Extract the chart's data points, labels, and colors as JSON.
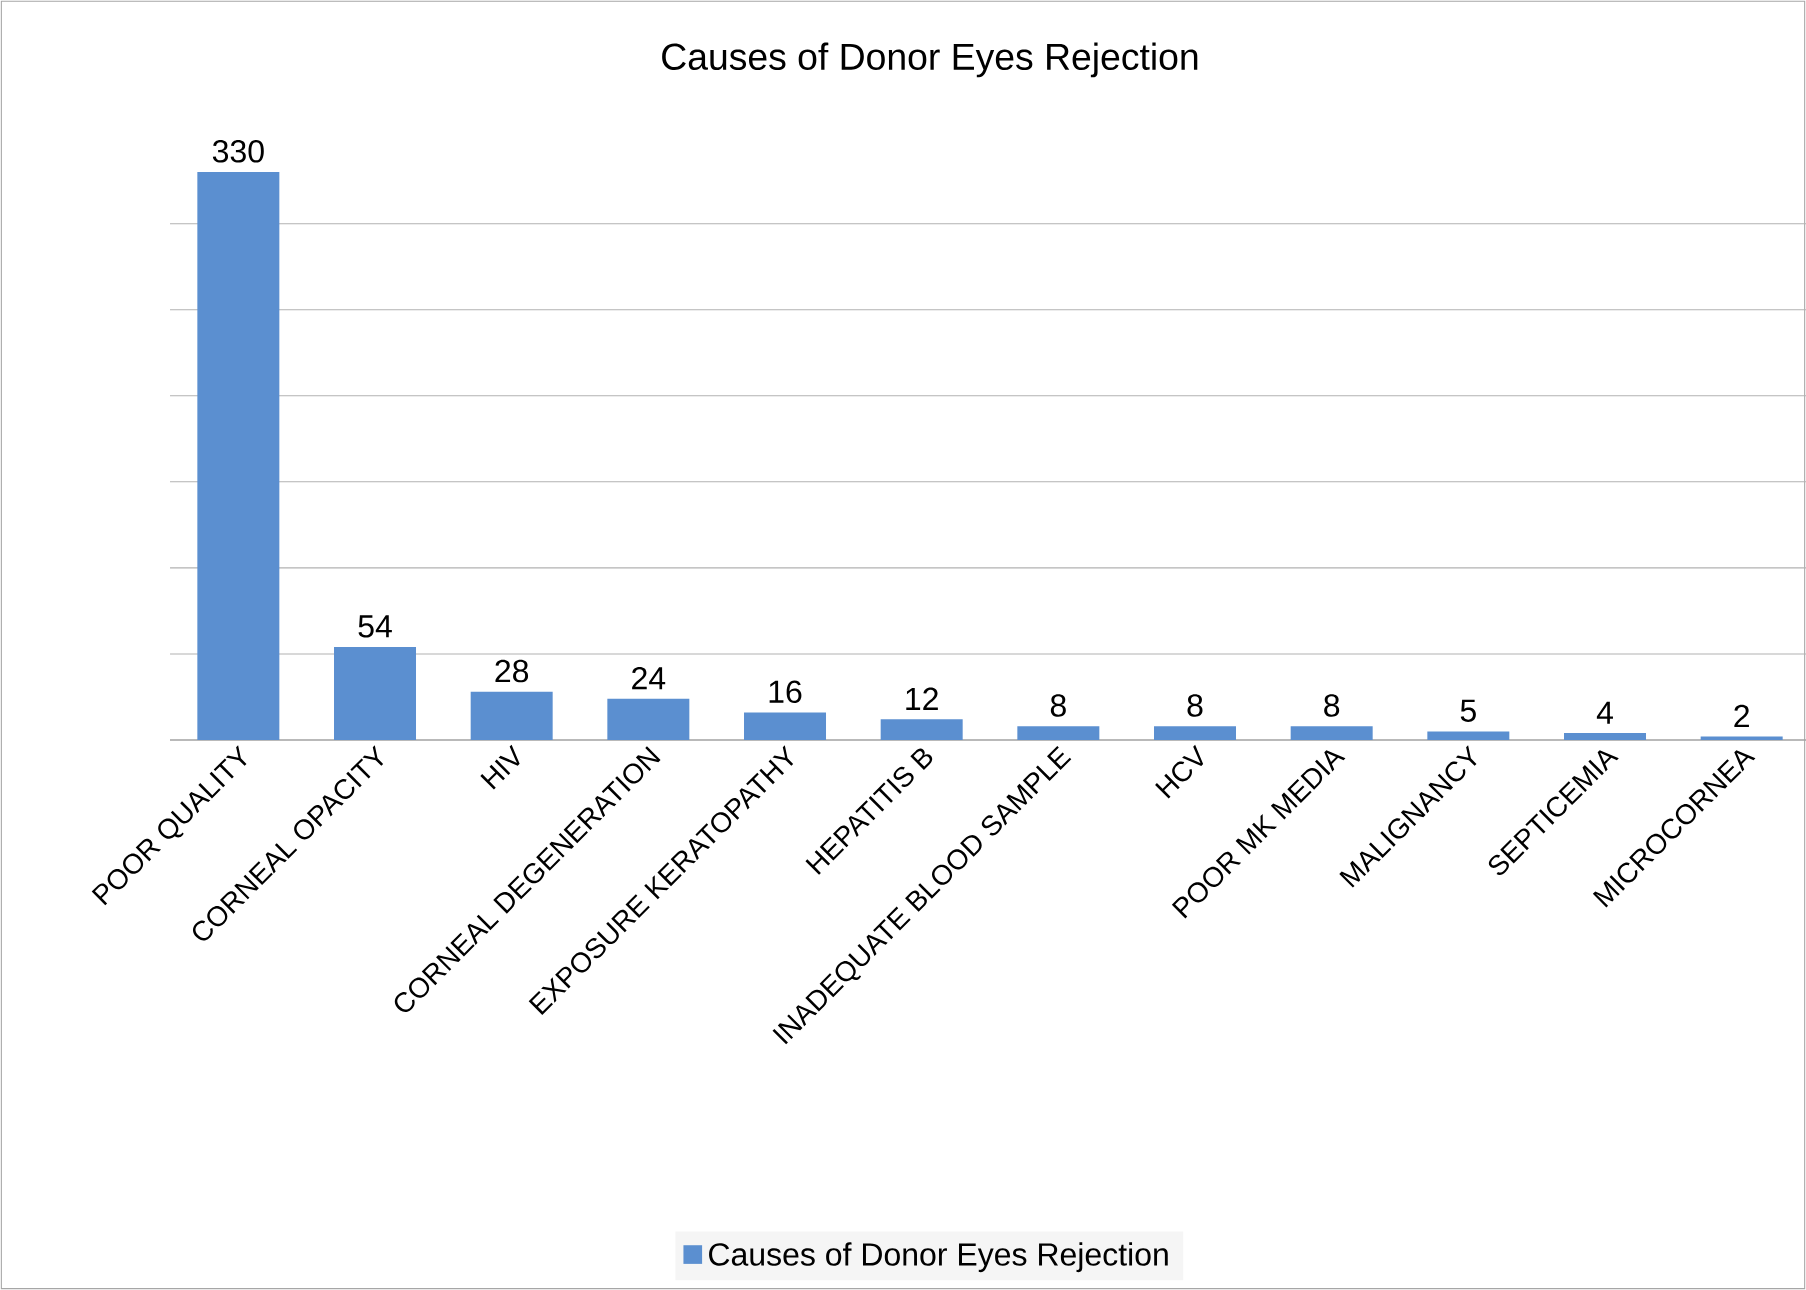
{
  "chart_data": {
    "type": "bar",
    "title": "Causes of Donor Eyes Rejection",
    "categories": [
      "POOR QUALITY",
      "CORNEAL OPACITY",
      "HIV",
      "CORNEAL DEGENERATION",
      "EXPOSURE KERATOPATHY",
      "HEPATITIS B",
      "INADEQUATE BLOOD SAMPLE",
      "HCV",
      "POOR MK MEDIA",
      "MALIGNANCY",
      "SEPTICEMIA",
      "MICROCORNEA"
    ],
    "series": [
      {
        "name": "Causes of Donor Eyes Rejection",
        "color": "#5b8fd0",
        "values": [
          330,
          54,
          28,
          24,
          16,
          12,
          8,
          8,
          8,
          5,
          4,
          2
        ]
      }
    ],
    "tick_labels": "x",
    "grid": "y",
    "legend": "bottom",
    "data_labels": true
  }
}
